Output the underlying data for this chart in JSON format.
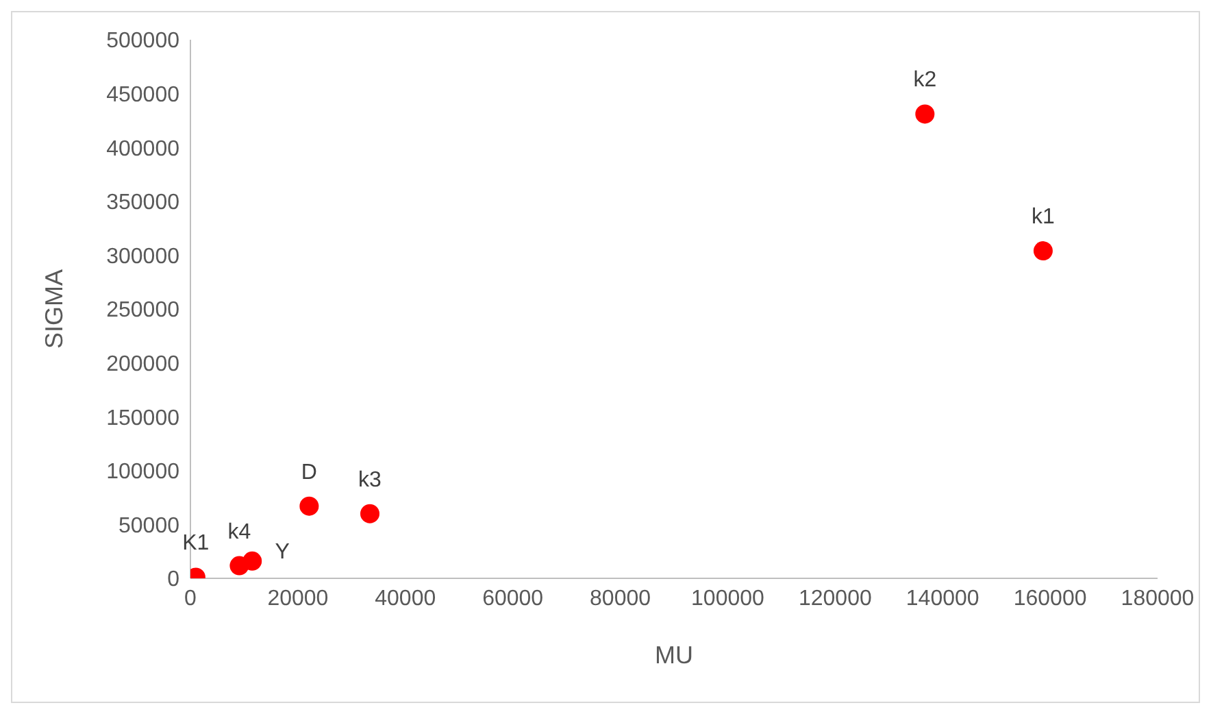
{
  "chart_data": {
    "type": "scatter",
    "xlabel": "MU",
    "ylabel": "SIGMA",
    "x": [
      1000,
      9100,
      11500,
      22100,
      33400,
      136700,
      158700
    ],
    "values": [
      1000,
      11700,
      16000,
      67000,
      60000,
      431000,
      304000
    ],
    "value_labels": [
      "K1",
      "k4",
      "Y",
      "D",
      "k3",
      "k2",
      "k1"
    ],
    "color": "#ff0000",
    "marker": "circle",
    "grid": false,
    "legend": false,
    "xlim": [
      0,
      180000
    ],
    "xticks": [
      0,
      20000,
      40000,
      60000,
      80000,
      100000,
      120000,
      140000,
      160000,
      180000
    ],
    "ylim": [
      0,
      500000
    ],
    "yticks": [
      0,
      50000,
      100000,
      150000,
      200000,
      250000,
      300000,
      350000,
      400000,
      450000,
      500000
    ]
  }
}
